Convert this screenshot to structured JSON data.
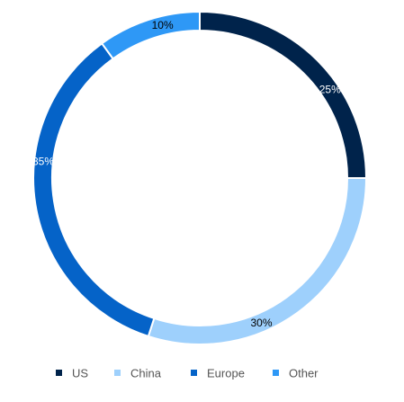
{
  "chart_data": {
    "type": "pie",
    "donut": true,
    "categories": [
      "US",
      "China",
      "Europe",
      "Other"
    ],
    "values": [
      25,
      30,
      35,
      10
    ],
    "labels": [
      "25%",
      "30%",
      "35%",
      "10%"
    ],
    "colors": [
      "#00234b",
      "#9ed0fc",
      "#0563c8",
      "#2e98f6"
    ],
    "label_colors": [
      "#ffffff",
      "#000000",
      "#ffffff",
      "#000000"
    ],
    "legend_position": "bottom"
  }
}
